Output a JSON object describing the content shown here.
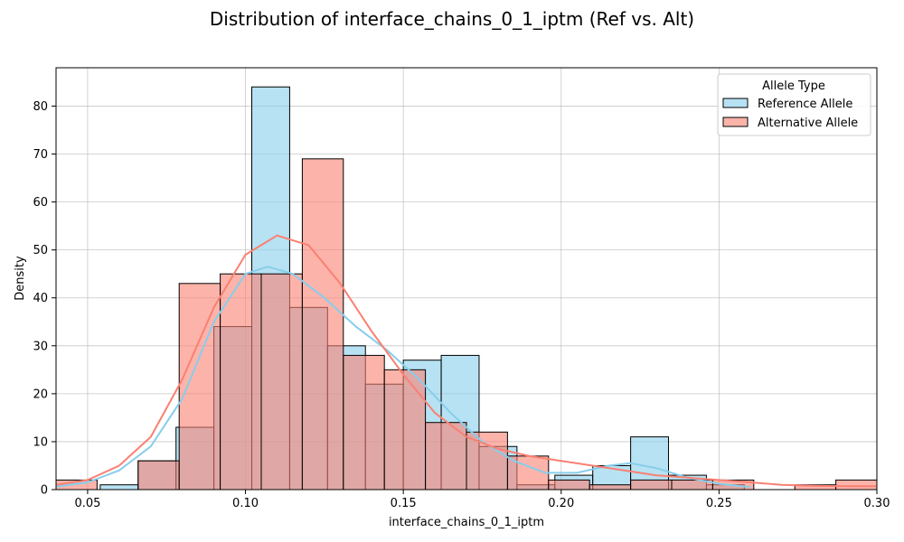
{
  "chart_data": {
    "type": "histogram",
    "title": "Distribution of interface_chains_0_1_iptm (Ref vs. Alt)",
    "xlabel": "interface_chains_0_1_iptm",
    "ylabel": "Density",
    "xlim": [
      0.04,
      0.3
    ],
    "ylim": [
      0,
      88
    ],
    "xticks": [
      0.05,
      0.1,
      0.15,
      0.2,
      0.25,
      0.3
    ],
    "xtick_labels": [
      "0.05",
      "0.10",
      "0.15",
      "0.20",
      "0.25",
      "0.30"
    ],
    "yticks": [
      0,
      10,
      20,
      30,
      40,
      50,
      60,
      70,
      80
    ],
    "grid": true,
    "legend": {
      "title": "Allele Type",
      "placement": "upper right",
      "entries": [
        "Reference Allele",
        "Alternative Allele"
      ]
    },
    "series": [
      {
        "name": "Reference Allele",
        "color": "#87ceeb",
        "bins": [
          {
            "x0": 0.054,
            "x1": 0.066,
            "value": 1
          },
          {
            "x0": 0.066,
            "x1": 0.078,
            "value": 6
          },
          {
            "x0": 0.078,
            "x1": 0.09,
            "value": 13
          },
          {
            "x0": 0.09,
            "x1": 0.102,
            "value": 34
          },
          {
            "x0": 0.102,
            "x1": 0.114,
            "value": 84
          },
          {
            "x0": 0.114,
            "x1": 0.126,
            "value": 38
          },
          {
            "x0": 0.126,
            "x1": 0.138,
            "value": 30
          },
          {
            "x0": 0.138,
            "x1": 0.15,
            "value": 22
          },
          {
            "x0": 0.15,
            "x1": 0.162,
            "value": 27
          },
          {
            "x0": 0.162,
            "x1": 0.174,
            "value": 28
          },
          {
            "x0": 0.174,
            "x1": 0.186,
            "value": 9
          },
          {
            "x0": 0.186,
            "x1": 0.198,
            "value": 1
          },
          {
            "x0": 0.198,
            "x1": 0.21,
            "value": 3
          },
          {
            "x0": 0.21,
            "x1": 0.222,
            "value": 5
          },
          {
            "x0": 0.222,
            "x1": 0.234,
            "value": 11
          },
          {
            "x0": 0.234,
            "x1": 0.246,
            "value": 3
          },
          {
            "x0": 0.246,
            "x1": 0.258,
            "value": 1
          }
        ],
        "kde": [
          [
            0.04,
            0.6
          ],
          [
            0.05,
            1.5
          ],
          [
            0.06,
            4
          ],
          [
            0.07,
            9
          ],
          [
            0.08,
            19
          ],
          [
            0.09,
            35
          ],
          [
            0.1,
            45
          ],
          [
            0.107,
            46.5
          ],
          [
            0.115,
            45
          ],
          [
            0.125,
            40
          ],
          [
            0.135,
            34
          ],
          [
            0.145,
            29
          ],
          [
            0.155,
            23
          ],
          [
            0.165,
            16
          ],
          [
            0.175,
            10
          ],
          [
            0.185,
            6
          ],
          [
            0.195,
            3.5
          ],
          [
            0.205,
            3.5
          ],
          [
            0.215,
            5
          ],
          [
            0.222,
            5.5
          ],
          [
            0.23,
            4.5
          ],
          [
            0.24,
            2.5
          ],
          [
            0.25,
            1.2
          ],
          [
            0.26,
            0.5
          ]
        ]
      },
      {
        "name": "Alternative Allele",
        "color": "#fa8072",
        "bins": [
          {
            "x0": 0.04,
            "x1": 0.053,
            "value": 2
          },
          {
            "x0": 0.066,
            "x1": 0.079,
            "value": 6
          },
          {
            "x0": 0.079,
            "x1": 0.092,
            "value": 43
          },
          {
            "x0": 0.092,
            "x1": 0.105,
            "value": 45
          },
          {
            "x0": 0.105,
            "x1": 0.118,
            "value": 45
          },
          {
            "x0": 0.118,
            "x1": 0.131,
            "value": 69
          },
          {
            "x0": 0.131,
            "x1": 0.144,
            "value": 28
          },
          {
            "x0": 0.144,
            "x1": 0.157,
            "value": 25
          },
          {
            "x0": 0.157,
            "x1": 0.17,
            "value": 14
          },
          {
            "x0": 0.17,
            "x1": 0.183,
            "value": 12
          },
          {
            "x0": 0.183,
            "x1": 0.196,
            "value": 7
          },
          {
            "x0": 0.196,
            "x1": 0.209,
            "value": 2
          },
          {
            "x0": 0.209,
            "x1": 0.222,
            "value": 1
          },
          {
            "x0": 0.222,
            "x1": 0.235,
            "value": 2
          },
          {
            "x0": 0.235,
            "x1": 0.248,
            "value": 2
          },
          {
            "x0": 0.248,
            "x1": 0.261,
            "value": 2
          },
          {
            "x0": 0.274,
            "x1": 0.287,
            "value": 1
          },
          {
            "x0": 0.287,
            "x1": 0.3,
            "value": 2
          }
        ],
        "kde": [
          [
            0.04,
            1
          ],
          [
            0.05,
            2
          ],
          [
            0.06,
            5
          ],
          [
            0.07,
            11
          ],
          [
            0.08,
            23
          ],
          [
            0.09,
            38
          ],
          [
            0.1,
            49
          ],
          [
            0.11,
            53
          ],
          [
            0.12,
            51
          ],
          [
            0.13,
            43
          ],
          [
            0.14,
            33
          ],
          [
            0.15,
            24
          ],
          [
            0.16,
            16
          ],
          [
            0.17,
            11
          ],
          [
            0.18,
            8.5
          ],
          [
            0.19,
            7
          ],
          [
            0.2,
            6
          ],
          [
            0.21,
            5
          ],
          [
            0.22,
            4
          ],
          [
            0.23,
            3
          ],
          [
            0.24,
            2.5
          ],
          [
            0.25,
            2
          ],
          [
            0.26,
            1.5
          ],
          [
            0.27,
            1
          ],
          [
            0.28,
            0.8
          ],
          [
            0.29,
            0.7
          ],
          [
            0.3,
            0.7
          ]
        ]
      }
    ]
  }
}
